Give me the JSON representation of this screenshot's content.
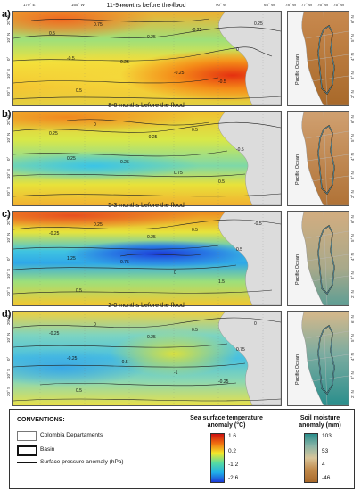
{
  "panels": [
    {
      "letter": "a)",
      "title": "11-9 months before the flood"
    },
    {
      "letter": "b)",
      "title": "8-6 months before the flood"
    },
    {
      "letter": "c)",
      "title": "5-3 months before the flood"
    },
    {
      "letter": "d)",
      "title": "2-0 months before the flood"
    }
  ],
  "main_lon_ticks": [
    "170° E",
    "165° W",
    "140° W",
    "115° W",
    "90° W",
    "65° W"
  ],
  "main_lat_ticks": [
    "20° N",
    "10° N",
    "0°",
    "10° S",
    "20° S"
  ],
  "inset_lon_ticks": [
    "78° W",
    "77° W",
    "76° W",
    "75° W"
  ],
  "inset_lat_ticks": [
    "6° N",
    "5° N",
    "4° N",
    "3° N",
    "2° N"
  ],
  "inset_ocean_label": "Pacific Ocean",
  "contour_labels": {
    "a": [
      "0.5",
      "0.75",
      "0.25",
      "-0.25",
      "0",
      "-0.5",
      "0.25",
      "-0.25",
      "-0.5",
      "0.5",
      "0.25"
    ],
    "b": [
      "0.25",
      "0",
      "-0.25",
      "0.5",
      "-0.5",
      "0.25",
      "0.25",
      "0.75",
      "0.5"
    ],
    "c": [
      "-0.25",
      "0.25",
      "0.25",
      "0.5",
      "0.5",
      "1.25",
      "0.75",
      "0",
      "1.5",
      "0.5",
      "-0.5"
    ],
    "d": [
      "-0.25",
      "0",
      "0.25",
      "0.5",
      "0.75",
      "-0.25",
      "-0.5",
      "-1",
      "-0.25",
      "0.5",
      "0"
    ]
  },
  "legend": {
    "conventions_title": "CONVENTIONS:",
    "items": [
      "Colombia Departaments",
      "Basin",
      "Surface pressure anomaly (hPa)"
    ],
    "sst_title_1": "Sea surface temperature",
    "sst_title_2": "anomaly (°C)",
    "sst_values": [
      "1.6",
      "0.2",
      "-1.2",
      "-2.6"
    ],
    "sm_title_1": "Soil moisture",
    "sm_title_2": "anomaly (mm)",
    "sm_values": [
      "103",
      "53",
      "4",
      "-46"
    ]
  },
  "colors": {
    "sst_warm": "#e8320a",
    "sst_mid": "#f2e82a",
    "sst_cool": "#29c0e0",
    "sst_cold": "#1d3bd8",
    "land": "#dcdcdc",
    "sm_wet": "#2a8e8c",
    "sm_dry": "#a8692a"
  }
}
